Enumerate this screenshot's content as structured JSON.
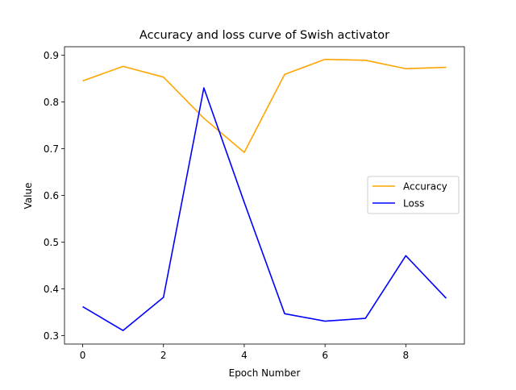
{
  "chart_data": {
    "type": "line",
    "title": "Accuracy and loss curve of Swish activator",
    "xlabel": "Epoch Number",
    "ylabel": "Value",
    "x": [
      0,
      1,
      2,
      3,
      4,
      5,
      6,
      7,
      8,
      9
    ],
    "xlim": [
      -0.45,
      9.45
    ],
    "ylim": [
      0.282,
      0.918
    ],
    "xticks": [
      "0",
      "2",
      "4",
      "6",
      "8"
    ],
    "yticks": [
      "0.3",
      "0.4",
      "0.5",
      "0.6",
      "0.7",
      "0.8",
      "0.9"
    ],
    "grid": false,
    "legend_position": "center-right",
    "series": [
      {
        "name": "Accuracy",
        "color": "#ffa500",
        "values": [
          0.845,
          0.876,
          0.853,
          0.765,
          0.692,
          0.859,
          0.891,
          0.889,
          0.871,
          0.874
        ]
      },
      {
        "name": "Loss",
        "color": "#0000ff",
        "values": [
          0.362,
          0.311,
          0.382,
          0.83,
          0.585,
          0.347,
          0.331,
          0.337,
          0.471,
          0.38
        ]
      }
    ]
  }
}
